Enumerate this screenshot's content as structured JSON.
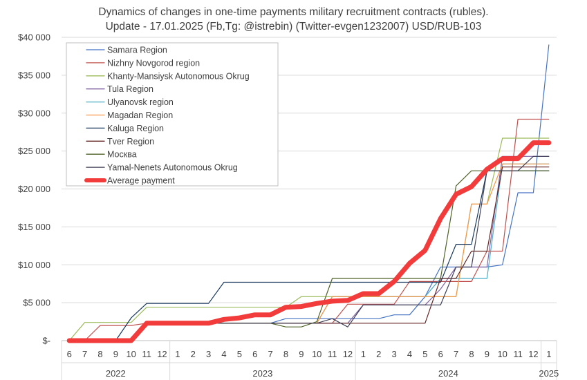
{
  "chart_data": {
    "type": "line",
    "title": "Dynamics of changes in one-time payments military recruitment contracts (rubles).",
    "subtitle": "Update - 17.01.2025 (Fb,Tg: @istrebin) (Twitter-evgen1232007) USD/RUB-103",
    "ylim": [
      0,
      40000
    ],
    "yticks": [
      0,
      5000,
      10000,
      15000,
      20000,
      25000,
      30000,
      35000,
      40000
    ],
    "ytick_labels": [
      "$-",
      "$5 000",
      "$10 000",
      "$15 000",
      "$20 000",
      "$25 000",
      "$30 000",
      "$35 000",
      "$40 000"
    ],
    "categories": [
      "6",
      "7",
      "8",
      "9",
      "10",
      "11",
      "12",
      "1",
      "2",
      "3",
      "4",
      "5",
      "6",
      "7",
      "8",
      "9",
      "10",
      "11",
      "12",
      "1",
      "2",
      "3",
      "4",
      "5",
      "6",
      "7",
      "8",
      "9",
      "10",
      "11",
      "12",
      "1"
    ],
    "years": [
      {
        "label": "2022",
        "start": 0,
        "end": 6
      },
      {
        "label": "2023",
        "start": 7,
        "end": 18
      },
      {
        "label": "2024",
        "start": 19,
        "end": 30
      },
      {
        "label": "2025",
        "start": 31,
        "end": 31
      }
    ],
    "legend_position": "top-left",
    "grid": true,
    "series": [
      {
        "name": "Samara Region",
        "color": "#4472c4",
        "width": 1.2,
        "values": [
          0,
          0,
          0,
          0,
          0,
          2300,
          2300,
          2300,
          2300,
          2300,
          2300,
          2300,
          2300,
          2300,
          2900,
          2900,
          2900,
          2900,
          2900,
          2900,
          2900,
          3400,
          3400,
          5800,
          9700,
          9700,
          9700,
          9700,
          10000,
          19500,
          19500,
          39000
        ]
      },
      {
        "name": "Nizhny Novgorod region",
        "color": "#c0504d",
        "width": 1.2,
        "values": [
          0,
          0,
          2000,
          2000,
          2000,
          2300,
          2300,
          2300,
          2300,
          2300,
          2300,
          2300,
          2300,
          2300,
          2300,
          2300,
          2300,
          2300,
          4800,
          4800,
          4800,
          4800,
          7800,
          7800,
          7800,
          7800,
          7800,
          11800,
          11800,
          29200,
          29200,
          29200
        ]
      },
      {
        "name": "Khanty-Mansiysk Autonomous Okrug",
        "color": "#9bbb59",
        "width": 1.2,
        "values": [
          0,
          2400,
          2400,
          2400,
          2400,
          4400,
          4400,
          4400,
          4400,
          4400,
          4400,
          4400,
          4400,
          4400,
          4400,
          5800,
          5800,
          5800,
          5800,
          5800,
          5800,
          5800,
          5800,
          5800,
          5800,
          5800,
          18000,
          18000,
          26700,
          26700,
          26700,
          26700
        ]
      },
      {
        "name": "Tula Region",
        "color": "#8064a2",
        "width": 1.2,
        "values": [
          0,
          0,
          0,
          0,
          0,
          2300,
          2300,
          2300,
          2300,
          2300,
          2300,
          2300,
          2300,
          2300,
          2300,
          2300,
          2300,
          2300,
          2300,
          4700,
          4700,
          4700,
          4700,
          4700,
          6800,
          9700,
          9700,
          9700,
          24300,
          24300,
          24300,
          24300
        ]
      },
      {
        "name": "Ulyanovsk region",
        "color": "#4bacc6",
        "width": 1.2,
        "values": [
          0,
          0,
          0,
          0,
          0,
          2300,
          2300,
          2300,
          2300,
          2300,
          2300,
          2300,
          2300,
          2300,
          2300,
          2300,
          2300,
          5800,
          5800,
          5800,
          5800,
          5800,
          5800,
          5800,
          8200,
          8200,
          8200,
          8200,
          23300,
          23300,
          23300,
          23300
        ]
      },
      {
        "name": "Magadan Region",
        "color": "#f79646",
        "width": 1.2,
        "values": [
          0,
          0,
          0,
          0,
          0,
          2300,
          2300,
          2300,
          2300,
          2300,
          2300,
          2300,
          2300,
          2300,
          2300,
          2300,
          2300,
          5800,
          5800,
          5800,
          5800,
          5800,
          5800,
          5800,
          5800,
          5800,
          18000,
          18000,
          23300,
          23300,
          23300,
          23300
        ]
      },
      {
        "name": "Kaluga Region",
        "color": "#17375e",
        "width": 1.2,
        "values": [
          0,
          0,
          0,
          0,
          3000,
          4900,
          4900,
          4900,
          4900,
          4900,
          7700,
          7700,
          7700,
          7700,
          7700,
          7700,
          7700,
          7700,
          7700,
          7700,
          7700,
          7700,
          7700,
          7700,
          7700,
          12700,
          12700,
          22400,
          22400,
          22400,
          22400,
          22400
        ]
      },
      {
        "name": "Tver Region",
        "color": "#632423",
        "width": 1.2,
        "values": [
          0,
          0,
          0,
          0,
          0,
          2300,
          2300,
          2300,
          2300,
          2300,
          2300,
          2300,
          2300,
          2300,
          2300,
          2300,
          2300,
          2300,
          2300,
          2300,
          2300,
          2300,
          2300,
          2300,
          8200,
          8200,
          11800,
          11800,
          22900,
          22900,
          22900,
          22900
        ]
      },
      {
        "name": "Москва",
        "color": "#4f6228",
        "width": 1.2,
        "values": [
          0,
          0,
          0,
          0,
          0,
          2300,
          2300,
          2300,
          2300,
          2300,
          2300,
          2300,
          2300,
          2300,
          1800,
          1800,
          2500,
          8200,
          8200,
          8200,
          8200,
          8200,
          8200,
          8200,
          8200,
          20400,
          22400,
          22400,
          22400,
          22400,
          22400,
          22400
        ]
      },
      {
        "name": "Yamal-Nenets Autonomous Okrug",
        "color": "#3f3f56",
        "width": 1.2,
        "values": [
          0,
          0,
          0,
          0,
          0,
          2300,
          2300,
          2300,
          2300,
          2300,
          2300,
          2300,
          2300,
          2300,
          2300,
          2300,
          2300,
          2900,
          1800,
          4700,
          4700,
          4700,
          4700,
          4700,
          4700,
          9700,
          9700,
          22400,
          22400,
          22400,
          24300,
          24300
        ]
      },
      {
        "name": "Average payment",
        "color": "#f23b3b",
        "width": 7,
        "values": [
          0,
          0,
          0,
          0,
          0,
          2300,
          2300,
          2300,
          2300,
          2300,
          2800,
          3000,
          3400,
          3400,
          4400,
          4500,
          4900,
          5200,
          5300,
          6200,
          6200,
          7800,
          10200,
          11900,
          16100,
          19300,
          20300,
          22600,
          24000,
          24000,
          26100,
          26100
        ]
      }
    ]
  }
}
